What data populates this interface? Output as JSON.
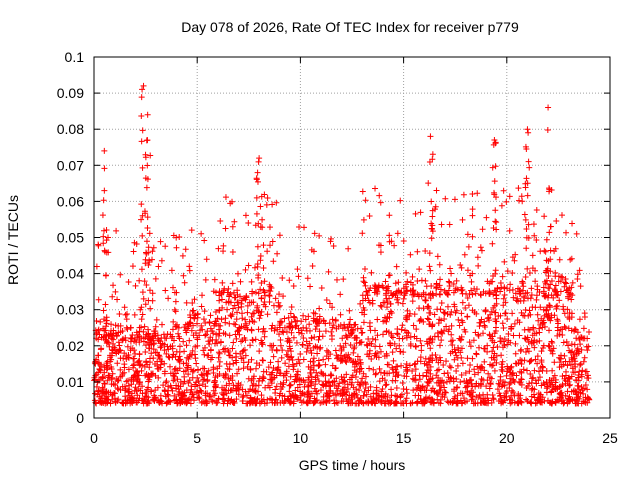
{
  "chart_data": {
    "type": "scatter",
    "title": "Day 078 of 2026, Rate Of TEC Index for receiver p779",
    "xlabel": "GPS time / hours",
    "ylabel": "ROTI / TECUs",
    "xlim": [
      0,
      25
    ],
    "ylim": [
      0,
      0.1
    ],
    "x_ticks": [
      0,
      5,
      10,
      15,
      20,
      25
    ],
    "x_tick_labels": [
      "0",
      "5",
      "10",
      "15",
      "20",
      "25"
    ],
    "y_ticks": [
      0,
      0.01,
      0.02,
      0.03,
      0.04,
      0.05,
      0.06,
      0.07,
      0.08,
      0.09,
      0.1
    ],
    "y_tick_labels": [
      "0",
      "0.01",
      "0.02",
      "0.03",
      "0.04",
      "0.05",
      "0.06",
      "0.07",
      "0.08",
      "0.09",
      "0.1"
    ],
    "grid": true,
    "marker": "+",
    "series": [
      {
        "name": "ROTI",
        "color": "#ff0000",
        "data_range_hours": [
          0,
          24
        ],
        "typical_range": [
          0.005,
          0.03
        ],
        "notable_peaks": [
          {
            "x": 0.5,
            "y": 0.074
          },
          {
            "x": 2.4,
            "y": 0.092
          },
          {
            "x": 2.6,
            "y": 0.084
          },
          {
            "x": 8.0,
            "y": 0.072
          },
          {
            "x": 16.3,
            "y": 0.078
          },
          {
            "x": 19.4,
            "y": 0.077
          },
          {
            "x": 21.0,
            "y": 0.08
          },
          {
            "x": 22.0,
            "y": 0.086
          }
        ]
      }
    ]
  }
}
